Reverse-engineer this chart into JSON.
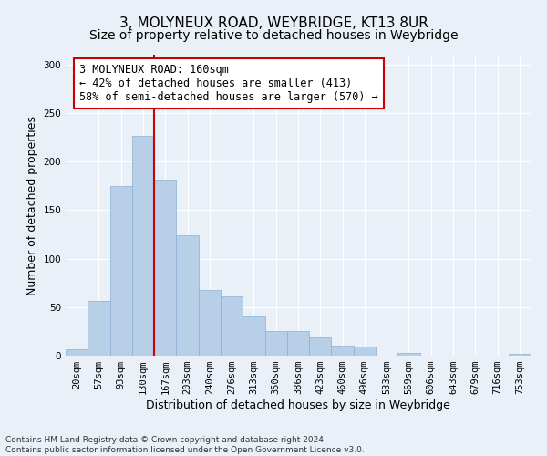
{
  "title_line1": "3, MOLYNEUX ROAD, WEYBRIDGE, KT13 8UR",
  "title_line2": "Size of property relative to detached houses in Weybridge",
  "xlabel": "Distribution of detached houses by size in Weybridge",
  "ylabel": "Number of detached properties",
  "background_color": "#eaf0f8",
  "bar_color": "#b8cfe8",
  "bar_edge_color": "#8aafd4",
  "bin_labels": [
    "20sqm",
    "57sqm",
    "93sqm",
    "130sqm",
    "167sqm",
    "203sqm",
    "240sqm",
    "276sqm",
    "313sqm",
    "350sqm",
    "386sqm",
    "423sqm",
    "460sqm",
    "496sqm",
    "533sqm",
    "569sqm",
    "606sqm",
    "643sqm",
    "679sqm",
    "716sqm",
    "753sqm"
  ],
  "bar_heights": [
    7,
    56,
    175,
    226,
    181,
    124,
    68,
    61,
    40,
    25,
    25,
    19,
    10,
    9,
    0,
    3,
    0,
    0,
    0,
    0,
    2
  ],
  "ylim": [
    0,
    310
  ],
  "yticks": [
    0,
    50,
    100,
    150,
    200,
    250,
    300
  ],
  "vline_x": 4.0,
  "annotation_title": "3 MOLYNEUX ROAD: 160sqm",
  "annotation_line1": "← 42% of detached houses are smaller (413)",
  "annotation_line2": "58% of semi-detached houses are larger (570) →",
  "annotation_box_color": "#ffffff",
  "annotation_border_color": "#cc0000",
  "footer_line1": "Contains HM Land Registry data © Crown copyright and database right 2024.",
  "footer_line2": "Contains public sector information licensed under the Open Government Licence v3.0.",
  "grid_color": "#ffffff",
  "title_fontsize": 11,
  "subtitle_fontsize": 10,
  "axis_label_fontsize": 9,
  "tick_fontsize": 7.5,
  "annotation_fontsize": 8.5,
  "footer_fontsize": 6.5
}
